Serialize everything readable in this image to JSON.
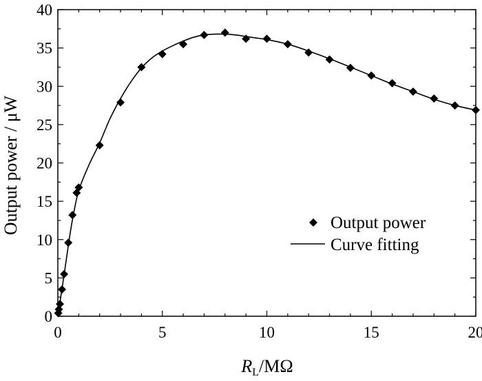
{
  "chart_data": {
    "type": "scatter",
    "title": "",
    "xlabel_main": "R",
    "xlabel_sub": "L",
    "xlabel_unit": "/MΩ",
    "ylabel": "Output power / μW",
    "xlim": [
      0,
      20
    ],
    "ylim": [
      0,
      40
    ],
    "xticks": [
      0,
      5,
      10,
      15,
      20
    ],
    "yticks": [
      0,
      5,
      10,
      15,
      20,
      25,
      30,
      35,
      40
    ],
    "grid": false,
    "legend_position": "right",
    "series": [
      {
        "name": "Output power",
        "kind": "markers",
        "marker": "diamond",
        "color": "#000000",
        "x": [
          0.02,
          0.05,
          0.1,
          0.2,
          0.3,
          0.5,
          0.7,
          0.9,
          1.0,
          2.0,
          3.0,
          4.0,
          5.0,
          6.0,
          7.0,
          8.0,
          9.0,
          10.0,
          11.0,
          12.0,
          13.0,
          14.0,
          15.0,
          16.0,
          17.0,
          18.0,
          19.0,
          20.0
        ],
        "y": [
          0.4,
          0.9,
          1.6,
          3.5,
          5.5,
          9.6,
          13.2,
          16.1,
          16.8,
          22.3,
          27.9,
          32.5,
          34.2,
          35.5,
          36.7,
          37.0,
          36.2,
          36.2,
          35.5,
          34.4,
          33.5,
          32.4,
          31.4,
          30.4,
          29.3,
          28.4,
          27.5,
          26.9
        ]
      },
      {
        "name": "Curve fitting",
        "kind": "line",
        "color": "#000000",
        "x": [
          0,
          0.1,
          0.3,
          0.5,
          0.7,
          1.0,
          1.5,
          2.0,
          2.5,
          3.0,
          3.5,
          4.0,
          4.5,
          5.0,
          5.5,
          6.0,
          6.5,
          7.0,
          7.5,
          8.0,
          8.5,
          9.0,
          9.5,
          10.0,
          11.0,
          12.0,
          13.0,
          14.0,
          15.0,
          16.0,
          17.0,
          18.0,
          19.0,
          20.0
        ],
        "y": [
          0,
          1.8,
          5.4,
          9.2,
          12.6,
          16.4,
          19.8,
          22.6,
          25.8,
          28.4,
          30.6,
          32.4,
          33.7,
          34.6,
          35.3,
          35.9,
          36.4,
          36.7,
          36.8,
          36.8,
          36.7,
          36.5,
          36.3,
          36.1,
          35.5,
          34.6,
          33.6,
          32.5,
          31.4,
          30.3,
          29.3,
          28.3,
          27.5,
          26.9
        ]
      }
    ]
  }
}
